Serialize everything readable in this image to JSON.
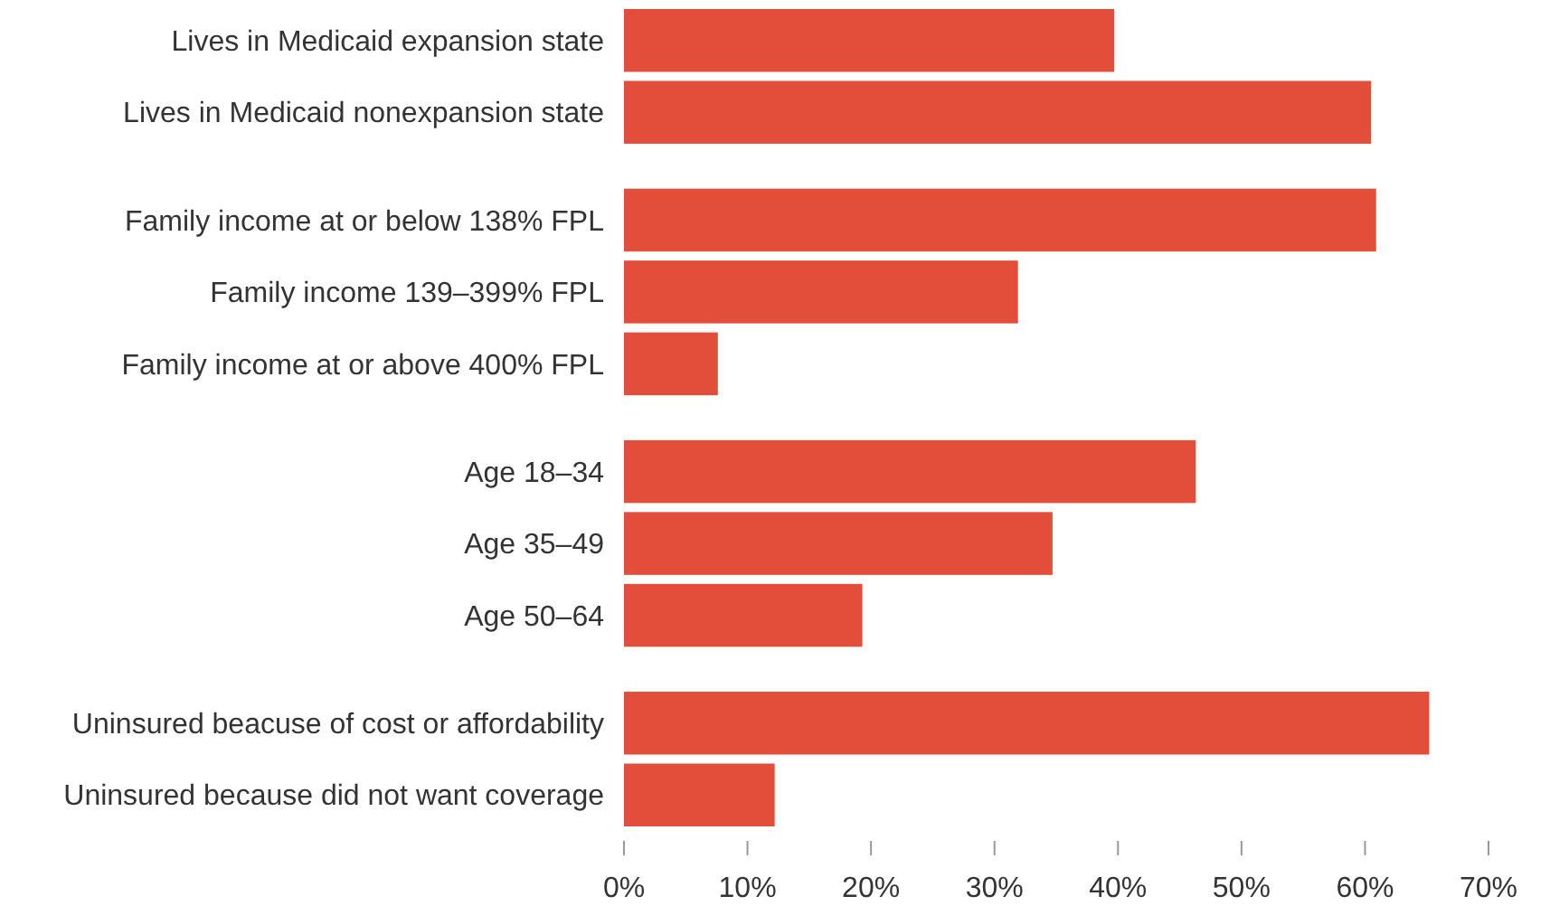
{
  "chart_data": {
    "type": "bar",
    "orientation": "horizontal",
    "categories": [
      "Lives in Medicaid expansion state",
      "Lives in Medicaid nonexpansion state",
      null,
      "Family income at or below 138% FPL",
      "Family income 139–399% FPL",
      "Family income at or above 400% FPL",
      null,
      "Age 18–34",
      "Age 35–49",
      "Age 50–64",
      null,
      "Uninsured beacuse of cost or affordability",
      "Uninsured because did not want coverage"
    ],
    "values": [
      39.7,
      60.5,
      null,
      60.9,
      31.9,
      7.6,
      null,
      46.3,
      34.7,
      19.3,
      null,
      65.2,
      12.2
    ],
    "color": "#e24e39",
    "xlim": [
      0,
      70
    ],
    "xticks": [
      {
        "value": 0,
        "label": "0%"
      },
      {
        "value": 10,
        "label": "10%"
      },
      {
        "value": 20,
        "label": "20%"
      },
      {
        "value": 30,
        "label": "30%"
      },
      {
        "value": 40,
        "label": "40%"
      },
      {
        "value": 50,
        "label": "50%"
      },
      {
        "value": 60,
        "label": "60%"
      },
      {
        "value": 70,
        "label": "70%"
      }
    ],
    "grid": false
  }
}
